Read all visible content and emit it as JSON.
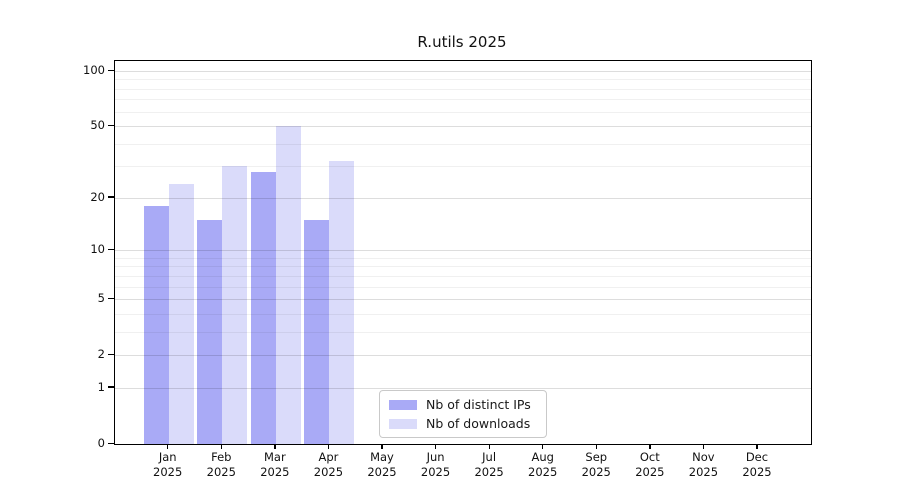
{
  "title": "R.utils 2025",
  "chart_data": {
    "type": "bar",
    "title": "R.utils 2025",
    "subtitle": "",
    "xlabel": "",
    "ylabel": "",
    "scale": "log1p",
    "grid": true,
    "legend_position": "bottom-center-inside",
    "year": "2025",
    "categories": [
      "Jan",
      "Feb",
      "Mar",
      "Apr",
      "May",
      "Jun",
      "Jul",
      "Aug",
      "Sep",
      "Oct",
      "Nov",
      "Dec"
    ],
    "series": [
      {
        "name": "Nb of distinct IPs",
        "color": "#a9aaf6",
        "values": [
          18,
          15,
          28,
          15,
          null,
          null,
          null,
          null,
          null,
          null,
          null,
          null
        ]
      },
      {
        "name": "Nb of downloads",
        "color": "#dadbfa",
        "values": [
          24,
          30,
          50,
          32,
          null,
          null,
          null,
          null,
          null,
          null,
          null,
          null
        ]
      }
    ],
    "yticks": [
      0,
      1,
      2,
      5,
      10,
      20,
      50,
      100
    ],
    "major_gridlines": [
      1,
      2,
      5,
      10,
      20,
      50,
      100
    ],
    "minor_gridlines": [
      3,
      4,
      6,
      7,
      8,
      9,
      30,
      40,
      60,
      70,
      80,
      90
    ],
    "ylim": [
      0,
      114
    ],
    "axis_color": "#000000",
    "text_color": "#111111"
  },
  "legend": {
    "items": [
      {
        "label": "Nb of distinct IPs",
        "color": "#a9aaf6"
      },
      {
        "label": "Nb of downloads",
        "color": "#dadbfa"
      }
    ]
  }
}
